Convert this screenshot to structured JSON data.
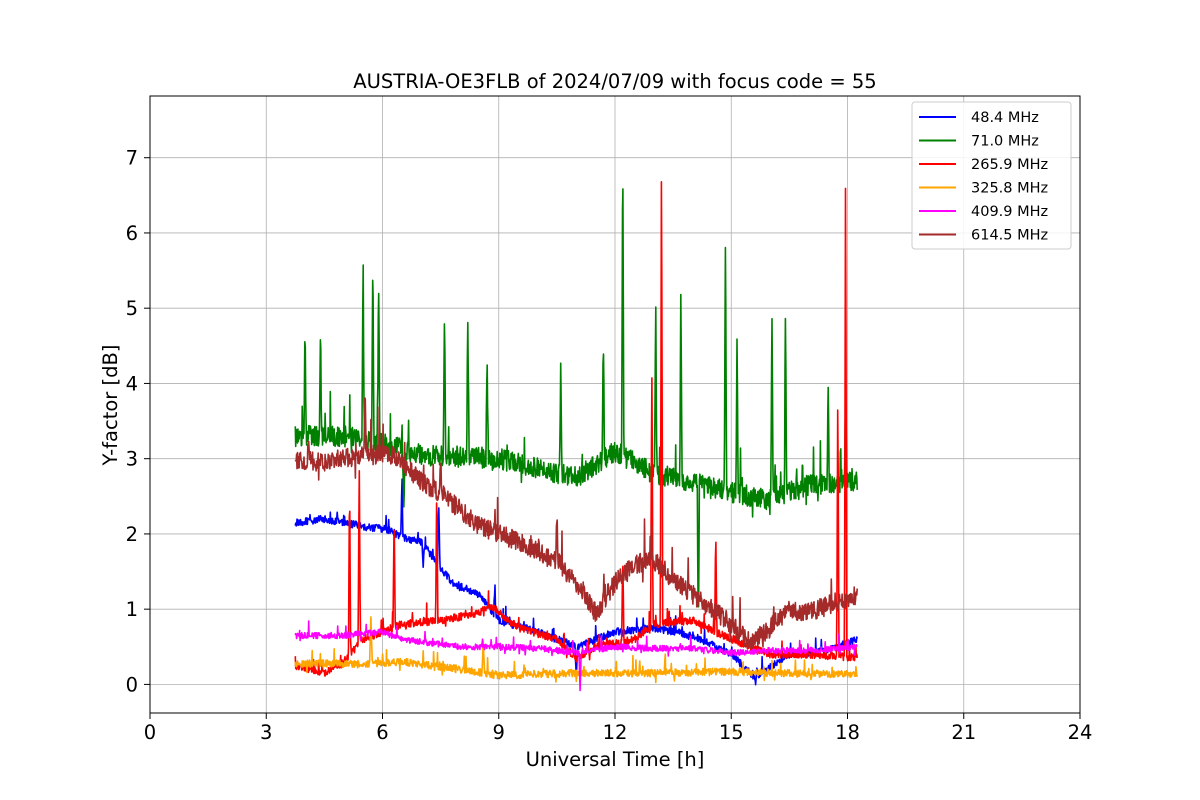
{
  "chart_data": {
    "type": "line",
    "title": "AUSTRIA-OE3FLB of 2024/07/09 with focus code = 55",
    "xlabel": "Universal Time [h]",
    "ylabel": "Y-factor [dB]",
    "xlim": [
      0,
      24
    ],
    "ylim": [
      -0.38,
      7.82
    ],
    "xticks": [
      0,
      3,
      6,
      9,
      12,
      15,
      18,
      21,
      24
    ],
    "xtick_labels": [
      "0",
      "3",
      "6",
      "9",
      "12",
      "15",
      "18",
      "21",
      "24"
    ],
    "yticks": [
      0,
      1,
      2,
      3,
      4,
      5,
      6,
      7
    ],
    "ytick_labels": [
      "0",
      "1",
      "2",
      "3",
      "4",
      "5",
      "6",
      "7"
    ],
    "grid": true,
    "legend_position": "top-right",
    "x_range_data": [
      3.75,
      18.25
    ],
    "series": [
      {
        "name": " 48.4 MHz",
        "color": "#0000ff",
        "base": [
          [
            3.75,
            2.15
          ],
          [
            4.5,
            2.2
          ],
          [
            5.5,
            2.1
          ],
          [
            6.2,
            2.05
          ],
          [
            6.5,
            1.95
          ],
          [
            7.0,
            1.9
          ],
          [
            7.5,
            1.55
          ],
          [
            7.8,
            1.35
          ],
          [
            8.5,
            1.2
          ],
          [
            9.0,
            0.85
          ],
          [
            10.0,
            0.7
          ],
          [
            11.0,
            0.5
          ],
          [
            12.0,
            0.7
          ],
          [
            13.0,
            0.75
          ],
          [
            14.0,
            0.65
          ],
          [
            15.0,
            0.4
          ],
          [
            15.6,
            0.1
          ],
          [
            16.5,
            0.4
          ],
          [
            17.5,
            0.45
          ],
          [
            18.25,
            0.6
          ]
        ],
        "noise": 0.05,
        "spikes": [
          [
            6.5,
            0.7
          ],
          [
            7.05,
            -0.3
          ],
          [
            7.45,
            0.9
          ],
          [
            8.9,
            0.4
          ],
          [
            11.0,
            -0.45
          ]
        ]
      },
      {
        "name": " 71.0 MHz",
        "color": "#008000",
        "base": [
          [
            3.75,
            3.3
          ],
          [
            5.0,
            3.3
          ],
          [
            6.0,
            3.2
          ],
          [
            7.0,
            3.05
          ],
          [
            9.0,
            3.0
          ],
          [
            11.0,
            2.75
          ],
          [
            12.0,
            3.1
          ],
          [
            13.0,
            2.8
          ],
          [
            14.0,
            2.7
          ],
          [
            15.0,
            2.55
          ],
          [
            16.0,
            2.45
          ],
          [
            17.0,
            2.65
          ],
          [
            18.25,
            2.7
          ]
        ],
        "noise": 0.14,
        "spikes": [
          [
            4.0,
            1.5
          ],
          [
            4.4,
            1.4
          ],
          [
            5.5,
            2.3
          ],
          [
            5.75,
            2.5
          ],
          [
            5.9,
            2.2
          ],
          [
            6.55,
            -0.9
          ],
          [
            7.6,
            1.9
          ],
          [
            8.2,
            1.8
          ],
          [
            8.7,
            1.3
          ],
          [
            10.6,
            1.6
          ],
          [
            11.7,
            1.6
          ],
          [
            12.2,
            4.1
          ],
          [
            13.05,
            2.3
          ],
          [
            13.7,
            2.4
          ],
          [
            14.15,
            -2.1
          ],
          [
            14.85,
            3.4
          ],
          [
            15.15,
            2.0
          ],
          [
            16.05,
            2.6
          ],
          [
            16.4,
            2.6
          ],
          [
            17.5,
            1.3
          ],
          [
            17.95,
            1.1
          ]
        ]
      },
      {
        "name": "265.9 MHz",
        "color": "#ff0000",
        "base": [
          [
            3.75,
            0.25
          ],
          [
            4.5,
            0.15
          ],
          [
            5.0,
            0.3
          ],
          [
            5.5,
            0.6
          ],
          [
            6.0,
            0.7
          ],
          [
            6.5,
            0.8
          ],
          [
            7.5,
            0.85
          ],
          [
            8.5,
            0.95
          ],
          [
            8.8,
            1.05
          ],
          [
            9.5,
            0.75
          ],
          [
            10.5,
            0.6
          ],
          [
            11.0,
            0.35
          ],
          [
            11.5,
            0.5
          ],
          [
            12.5,
            0.6
          ],
          [
            13.0,
            0.8
          ],
          [
            14.0,
            0.85
          ],
          [
            15.0,
            0.6
          ],
          [
            16.0,
            0.4
          ],
          [
            17.0,
            0.4
          ],
          [
            18.25,
            0.35
          ]
        ],
        "noise": 0.05,
        "spikes": [
          [
            5.15,
            2.3
          ],
          [
            5.4,
            2.4
          ],
          [
            6.3,
            1.5
          ],
          [
            7.4,
            1.7
          ],
          [
            12.2,
            1.2
          ],
          [
            12.95,
            3.5
          ],
          [
            13.2,
            6.5
          ],
          [
            14.6,
            1.3
          ],
          [
            17.75,
            3.5
          ],
          [
            17.95,
            6.5
          ]
        ]
      },
      {
        "name": "325.8 MHz",
        "color": "#ffa500",
        "base": [
          [
            3.75,
            0.28
          ],
          [
            5.5,
            0.27
          ],
          [
            6.5,
            0.3
          ],
          [
            8.0,
            0.2
          ],
          [
            9.0,
            0.12
          ],
          [
            11.0,
            0.15
          ],
          [
            13.0,
            0.15
          ],
          [
            15.0,
            0.17
          ],
          [
            17.0,
            0.14
          ],
          [
            18.25,
            0.14
          ]
        ],
        "noise": 0.05,
        "spikes": [
          [
            5.7,
            0.7
          ],
          [
            8.6,
            0.5
          ]
        ]
      },
      {
        "name": "409.9 MHz",
        "color": "#ff00ff",
        "base": [
          [
            3.75,
            0.65
          ],
          [
            5.0,
            0.65
          ],
          [
            6.0,
            0.7
          ],
          [
            6.5,
            0.6
          ],
          [
            8.0,
            0.5
          ],
          [
            9.0,
            0.5
          ],
          [
            10.0,
            0.48
          ],
          [
            11.0,
            0.42
          ],
          [
            12.0,
            0.5
          ],
          [
            13.0,
            0.48
          ],
          [
            14.0,
            0.48
          ],
          [
            15.0,
            0.42
          ],
          [
            16.0,
            0.45
          ],
          [
            17.0,
            0.45
          ],
          [
            18.25,
            0.5
          ]
        ],
        "noise": 0.04,
        "spikes": [
          [
            11.1,
            -0.45
          ]
        ]
      },
      {
        "name": "614.5 MHz",
        "color": "#a52a2a",
        "base": [
          [
            3.75,
            3.0
          ],
          [
            4.5,
            2.95
          ],
          [
            5.5,
            3.05
          ],
          [
            6.3,
            3.05
          ],
          [
            7.0,
            2.7
          ],
          [
            7.6,
            2.5
          ],
          [
            8.5,
            2.1
          ],
          [
            9.5,
            1.9
          ],
          [
            10.5,
            1.65
          ],
          [
            11.0,
            1.35
          ],
          [
            11.5,
            0.95
          ],
          [
            12.0,
            1.35
          ],
          [
            12.5,
            1.6
          ],
          [
            13.0,
            1.65
          ],
          [
            13.5,
            1.4
          ],
          [
            14.0,
            1.2
          ],
          [
            14.5,
            1.0
          ],
          [
            15.0,
            0.8
          ],
          [
            15.5,
            0.55
          ],
          [
            16.0,
            0.75
          ],
          [
            16.5,
            1.0
          ],
          [
            17.0,
            0.95
          ],
          [
            17.5,
            1.05
          ],
          [
            18.25,
            1.2
          ]
        ],
        "noise": 0.13,
        "spikes": [
          [
            5.55,
            0.8
          ],
          [
            7.5,
            0.5
          ],
          [
            10.5,
            0.6
          ]
        ]
      }
    ]
  }
}
